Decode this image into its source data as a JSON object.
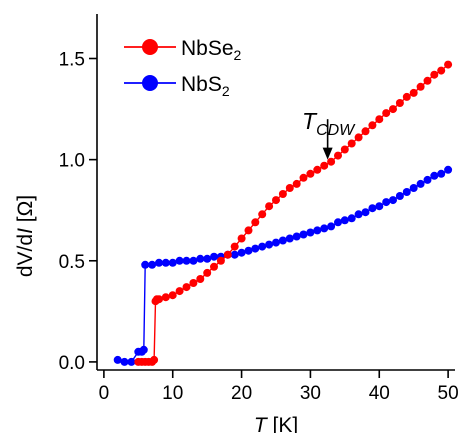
{
  "chart_data": {
    "type": "scatter",
    "title": "",
    "xlabel_var": "T",
    "xlabel_unit": " [K]",
    "ylabel_prefix": "dV/d",
    "ylabel_var": "I",
    "ylabel_unit": " [Ω]",
    "xlim": [
      -1,
      51
    ],
    "ylim": [
      -0.04,
      1.72
    ],
    "xticks": [
      0,
      10,
      20,
      30,
      40,
      50
    ],
    "xtick_labels": [
      "0",
      "10",
      "20",
      "30",
      "40",
      "50"
    ],
    "yticks": [
      0.0,
      0.5,
      1.0,
      1.5
    ],
    "ytick_labels": [
      "0.0",
      "0.5",
      "1.0",
      "1.5"
    ],
    "legend_position": "top-left",
    "series": [
      {
        "name": "NbSe2",
        "name_base": "NbSe",
        "name_sub": "2",
        "color": "#ff0000",
        "marker": "circle",
        "x": [
          5,
          5.5,
          6,
          6.5,
          7,
          7.3,
          7.5,
          7.7,
          8,
          9,
          10,
          11,
          12,
          13,
          14,
          15,
          16,
          17,
          18,
          19,
          20,
          21,
          22,
          23,
          24,
          25,
          26,
          27,
          28,
          29,
          30,
          31,
          32,
          33,
          34,
          35,
          36,
          37,
          38,
          39,
          40,
          41,
          42,
          43,
          44,
          45,
          46,
          47,
          48,
          49,
          50
        ],
        "y": [
          0.0,
          0.0,
          0.0,
          0.0,
          0.0,
          0.01,
          0.3,
          0.31,
          0.31,
          0.32,
          0.33,
          0.35,
          0.37,
          0.39,
          0.41,
          0.44,
          0.47,
          0.5,
          0.53,
          0.57,
          0.61,
          0.65,
          0.69,
          0.73,
          0.77,
          0.8,
          0.83,
          0.86,
          0.88,
          0.91,
          0.93,
          0.95,
          0.97,
          0.99,
          1.02,
          1.05,
          1.08,
          1.11,
          1.14,
          1.17,
          1.2,
          1.23,
          1.25,
          1.28,
          1.31,
          1.33,
          1.36,
          1.39,
          1.42,
          1.44,
          1.47
        ]
      },
      {
        "name": "NbS2",
        "name_base": "NbS",
        "name_sub": "2",
        "color": "#0000ff",
        "marker": "circle",
        "x": [
          2,
          3,
          4,
          5,
          5.5,
          5.8,
          6,
          7,
          8,
          9,
          10,
          11,
          12,
          13,
          14,
          15,
          16,
          17,
          18,
          19,
          20,
          21,
          22,
          23,
          24,
          25,
          26,
          27,
          28,
          29,
          30,
          31,
          32,
          33,
          34,
          35,
          36,
          37,
          38,
          39,
          40,
          41,
          42,
          43,
          44,
          45,
          46,
          47,
          48,
          49,
          50
        ],
        "y": [
          0.01,
          0.0,
          0.0,
          0.05,
          0.05,
          0.06,
          0.48,
          0.48,
          0.49,
          0.49,
          0.49,
          0.5,
          0.5,
          0.5,
          0.51,
          0.51,
          0.52,
          0.52,
          0.53,
          0.53,
          0.54,
          0.55,
          0.56,
          0.57,
          0.58,
          0.59,
          0.6,
          0.61,
          0.62,
          0.63,
          0.64,
          0.65,
          0.66,
          0.67,
          0.69,
          0.7,
          0.71,
          0.73,
          0.74,
          0.76,
          0.77,
          0.79,
          0.8,
          0.82,
          0.84,
          0.86,
          0.88,
          0.9,
          0.92,
          0.93,
          0.95
        ]
      }
    ],
    "annotations": [
      {
        "text_base": "T",
        "text_sub": "CDW",
        "arrow_x": 32.5,
        "arrow_y_top": 1.2,
        "arrow_y_tip": 1.0
      }
    ]
  }
}
